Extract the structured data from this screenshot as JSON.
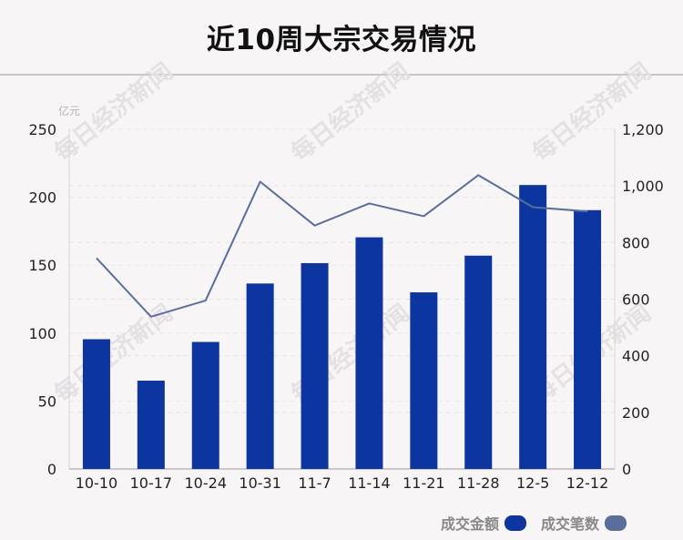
{
  "title": "近10周大宗交易情况",
  "watermark_text": "每日经济新闻",
  "chart_data": {
    "type": "bar",
    "categories": [
      "10-10",
      "10-17",
      "10-24",
      "10-31",
      "11-7",
      "11-14",
      "11-21",
      "11-28",
      "12-5",
      "12-12"
    ],
    "series": [
      {
        "name": "成交金额",
        "type": "bar",
        "axis": "left",
        "color": "#0c35a0",
        "values": [
          95.5,
          65,
          93.5,
          136.5,
          151.5,
          170.5,
          130,
          157,
          209,
          190.5
        ]
      },
      {
        "name": "成交笔数",
        "type": "line",
        "axis": "right",
        "color": "#5b6e9a",
        "values": [
          745,
          538,
          595,
          1015,
          860,
          938,
          893,
          1038,
          925,
          910
        ]
      }
    ],
    "y_left": {
      "unit_label": "亿元",
      "range": [
        0,
        250
      ],
      "ticks": [
        0,
        50,
        100,
        150,
        200,
        250
      ],
      "tick_labels": [
        "0",
        "50",
        "100",
        "150",
        "200",
        "250"
      ]
    },
    "y_right": {
      "range": [
        0,
        1200
      ],
      "ticks": [
        0,
        200,
        400,
        600,
        800,
        1000,
        1200
      ],
      "tick_labels": [
        "0",
        "200",
        "400",
        "600",
        "800",
        "1,000",
        "1,200"
      ]
    },
    "grid": true,
    "legend_position": "bottom-right"
  }
}
